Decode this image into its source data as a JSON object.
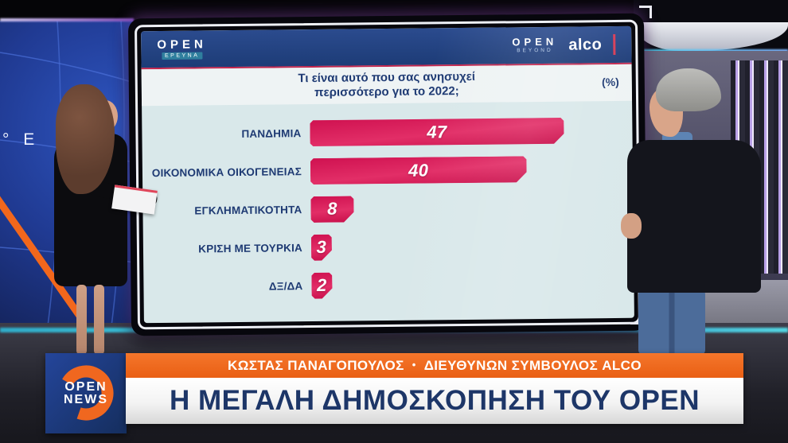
{
  "chart_data": {
    "type": "bar",
    "orientation": "horizontal",
    "title": "Τι είναι αυτό που σας ανησυχεί περισσότερο για το 2022;",
    "unit": "(%)",
    "categories": [
      "ΠΑΝΔΗΜΙΑ",
      "ΟΙΚΟΝΟΜΙΚΑ ΟΙΚΟΓΕΝΕΙΑΣ",
      "ΕΓΚΛΗΜΑΤΙΚΟΤΗΤΑ",
      "ΚΡΙΣΗ ΜΕ ΤΟΥΡΚΙΑ",
      "ΔΞ/ΔΑ"
    ],
    "values": [
      47,
      40,
      8,
      3,
      2
    ],
    "xlim": [
      0,
      57
    ],
    "bar_color": "#d5155a",
    "label_color": "#1e3a73",
    "value_labels_inside": true,
    "grid": false,
    "legend": false
  },
  "screen": {
    "brand_left": {
      "name": "OPEN",
      "sub": "ΕΡΕΥΝΑ"
    },
    "brand_right": {
      "name": "OPEN",
      "sub": "BEYOND"
    },
    "alco": "alco",
    "title_line1": "Τι είναι αυτό που σας ανησυχεί",
    "title_line2": "περισσότερο για το 2022;",
    "unit": "(%)"
  },
  "banner": {
    "speaker": "ΚΩΣΤΑΣ ΠΑΝΑΓΟΠΟΥΛΟΣ",
    "separator": "•",
    "role": "ΔΙΕΥΘΥΝΩΝ ΣΥΜΒΟΥΛΟΣ ALCO",
    "headline": "Η ΜΕΓΑΛΗ ΔΗΜΟΣΚΟΠΗΣΗ ΤΟΥ OPEN",
    "channel_logo": {
      "line1": "OPEN",
      "line2": "NEWS"
    }
  },
  "studio": {
    "wall_label": "° E"
  },
  "colors": {
    "bar_crimson": "#d5155a",
    "accent_orange": "#f0671f",
    "navy": "#1d3a74",
    "chart_background": "#d9e8ea",
    "cyan_glow": "#3ad6ee"
  }
}
